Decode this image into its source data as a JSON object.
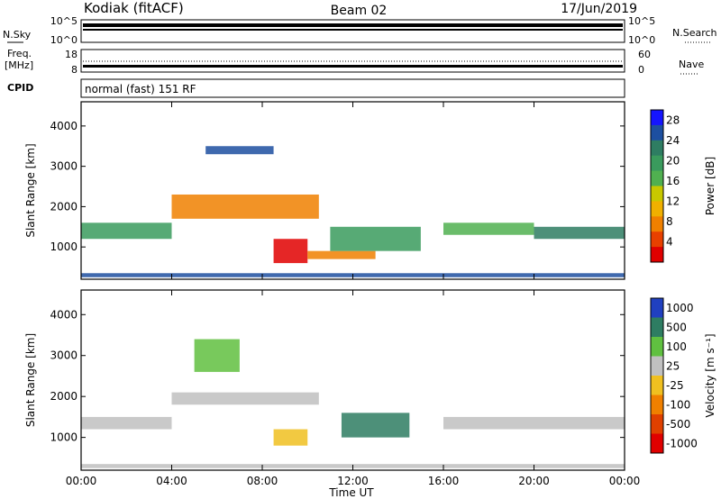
{
  "header": {
    "station": "Kodiak (fitACF)",
    "beam": "Beam 02",
    "date": "17/Jun/2019"
  },
  "nsky_panel": {
    "left_label": "N.Sky",
    "right_label": "N.Search",
    "left_ticks": [
      "10^5",
      "10^0"
    ],
    "right_ticks": [
      "10^5",
      "10^0"
    ]
  },
  "freq_panel": {
    "left_label_line1": "Freq.",
    "left_label_line2": "[MHz]",
    "right_label": "Nave",
    "left_ticks": [
      "18",
      "8"
    ],
    "right_ticks": [
      "60",
      "0"
    ]
  },
  "cpid": {
    "label": "CPID",
    "value": "normal (fast) 151 RF"
  },
  "chart_data": [
    {
      "type": "heatmap",
      "name": "power",
      "ylabel": "Slant Range [km]",
      "ylim": [
        200,
        4600
      ],
      "yticks": [
        1000,
        2000,
        3000,
        4000
      ],
      "x_ticks": [
        "00:00",
        "04:00",
        "08:00",
        "12:00",
        "16:00",
        "20:00",
        "00:00"
      ],
      "colorbar": {
        "label": "Power [dB]",
        "ticks": [
          "4",
          "8",
          "12",
          "16",
          "20",
          "24",
          "28"
        ],
        "colors": [
          "#1515ff",
          "#1d4fa0",
          "#2e7d62",
          "#3a9b5d",
          "#50b050",
          "#c8c800",
          "#f0b000",
          "#f08000",
          "#e84000",
          "#e00000"
        ]
      },
      "regions": [
        {
          "hours": [
            0.0,
            4.0
          ],
          "range_km": [
            1200,
            1600
          ],
          "color": "#3a9b5d"
        },
        {
          "hours": [
            4.0,
            10.5
          ],
          "range_km": [
            1700,
            2300
          ],
          "color": "#f08000"
        },
        {
          "hours": [
            5.5,
            8.5
          ],
          "range_km": [
            3300,
            3500
          ],
          "color": "#1d4fa0"
        },
        {
          "hours": [
            8.5,
            10.0
          ],
          "range_km": [
            600,
            1200
          ],
          "color": "#e00000"
        },
        {
          "hours": [
            10.0,
            13.0
          ],
          "range_km": [
            700,
            900
          ],
          "color": "#f08000"
        },
        {
          "hours": [
            11.0,
            15.0
          ],
          "range_km": [
            900,
            1500
          ],
          "color": "#3a9b5d"
        },
        {
          "hours": [
            16.0,
            20.0
          ],
          "range_km": [
            1300,
            1600
          ],
          "color": "#50b050"
        },
        {
          "hours": [
            20.0,
            24.0
          ],
          "range_km": [
            1200,
            1500
          ],
          "color": "#2e7d62"
        },
        {
          "hours": [
            0.0,
            24.0
          ],
          "range_km": [
            250,
            350
          ],
          "color": "#1d4fa0"
        }
      ]
    },
    {
      "type": "heatmap",
      "name": "velocity",
      "ylabel": "Slant Range [km]",
      "xlabel": "Time UT",
      "ylim": [
        200,
        4600
      ],
      "yticks": [
        1000,
        2000,
        3000,
        4000
      ],
      "x_ticks": [
        "00:00",
        "04:00",
        "08:00",
        "12:00",
        "16:00",
        "20:00",
        "00:00"
      ],
      "colorbar": {
        "label": "Velocity [m s⁻¹]",
        "ticks": [
          "1000",
          "500",
          "100",
          "25",
          "-25",
          "-100",
          "-500",
          "-1000"
        ],
        "colors": [
          "#2040c0",
          "#2e7d62",
          "#60c040",
          "#c0c0c0",
          "#f0c020",
          "#f08000",
          "#e04000",
          "#e00000"
        ]
      },
      "regions": [
        {
          "hours": [
            0.0,
            4.0
          ],
          "range_km": [
            1200,
            1500
          ],
          "color": "#c0c0c0"
        },
        {
          "hours": [
            4.0,
            10.5
          ],
          "range_km": [
            1800,
            2100
          ],
          "color": "#c0c0c0"
        },
        {
          "hours": [
            5.0,
            7.0
          ],
          "range_km": [
            2600,
            3400
          ],
          "color": "#60c040"
        },
        {
          "hours": [
            8.5,
            10.0
          ],
          "range_km": [
            800,
            1200
          ],
          "color": "#f0c020"
        },
        {
          "hours": [
            11.5,
            14.5
          ],
          "range_km": [
            1000,
            1600
          ],
          "color": "#2e7d62"
        },
        {
          "hours": [
            16.0,
            24.0
          ],
          "range_km": [
            1200,
            1500
          ],
          "color": "#c0c0c0"
        },
        {
          "hours": [
            0.0,
            24.0
          ],
          "range_km": [
            250,
            350
          ],
          "color": "#c0c0c0"
        }
      ]
    }
  ],
  "xlabel": "Time UT"
}
